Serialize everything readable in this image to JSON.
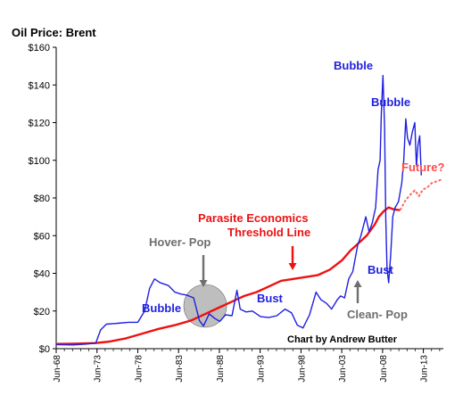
{
  "chart_data": {
    "type": "line",
    "title": "Oil Price: Brent",
    "xlabel": "",
    "ylabel": "",
    "ylim": [
      0,
      160
    ],
    "xlim": [
      1968.45,
      2015.9
    ],
    "y_ticks": [
      "$0",
      "$20",
      "$40",
      "$60",
      "$80",
      "$100",
      "$120",
      "$140",
      "$160"
    ],
    "y_tick_values": [
      0,
      20,
      40,
      60,
      80,
      100,
      120,
      140,
      160
    ],
    "x_ticks": [
      "Jun-68",
      "Jun-73",
      "Jun-78",
      "Jun-83",
      "Jun-88",
      "Jun-93",
      "Jun-98",
      "Jun-03",
      "Jun-08",
      "Jun-13"
    ],
    "x_tick_values": [
      1968.45,
      1973.45,
      1978.45,
      1983.45,
      1988.45,
      1993.45,
      1998.45,
      2003.45,
      2008.45,
      2013.45
    ],
    "grid": false,
    "colors": {
      "brent": "#1f1fe0",
      "threshold": "#ee1111",
      "future": "#ff6666",
      "pop_circle": "#b8b8b8",
      "arrow_gray": "#6e6e6e"
    },
    "series": [
      {
        "key": "brent",
        "x": [
          1968.45,
          1970.5,
          1972.0,
          1973.3,
          1973.9,
          1974.6,
          1976.0,
          1977.3,
          1978.45,
          1979.3,
          1979.9,
          1980.5,
          1981.2,
          1982.2,
          1983.0,
          1983.7,
          1984.4,
          1985.3,
          1986.0,
          1986.5,
          1987.2,
          1987.9,
          1988.5,
          1989.2,
          1990.0,
          1990.6,
          1991.0,
          1991.7,
          1992.5,
          1993.5,
          1994.5,
          1995.5,
          1996.5,
          1997.3,
          1998.0,
          1998.7,
          1999.5,
          2000.3,
          2000.9,
          2001.6,
          2002.2,
          2002.9,
          2003.3,
          2003.8,
          2004.3,
          2004.8,
          2005.4,
          2005.8,
          2006.4,
          2006.8,
          2007.2,
          2007.6,
          2007.9,
          2008.15,
          2008.3,
          2008.5,
          2008.7,
          2008.85,
          2009.0,
          2009.2,
          2009.45,
          2009.7,
          2010.0,
          2010.4,
          2010.8,
          2011.05,
          2011.3,
          2011.5,
          2011.8,
          2012.1,
          2012.4,
          2012.6,
          2012.8,
          2013.0,
          2013.2
        ],
        "values": [
          2.2,
          2.0,
          2.4,
          3.0,
          10.0,
          13.0,
          13.5,
          14.0,
          14.0,
          20.0,
          32.0,
          37.0,
          35.0,
          33.5,
          30.0,
          29.0,
          28.5,
          27.0,
          15.0,
          12.0,
          18.5,
          16.0,
          14.5,
          18.0,
          17.5,
          31.0,
          21.0,
          19.5,
          20.0,
          17.0,
          16.5,
          17.5,
          21.0,
          19.0,
          12.5,
          11.0,
          18.0,
          30.0,
          26.0,
          24.0,
          21.0,
          26.0,
          28.0,
          27.0,
          37.0,
          41.0,
          55.0,
          60.0,
          70.0,
          62.0,
          67.0,
          75.0,
          95.0,
          100.0,
          125.0,
          145.0,
          118.0,
          68.0,
          42.0,
          35.0,
          50.0,
          70.0,
          75.0,
          78.0,
          88.0,
          100.0,
          122.0,
          112.0,
          108.0,
          115.0,
          120.0,
          97.0,
          108.0,
          113.0,
          92.0
        ]
      },
      {
        "key": "threshold",
        "x": [
          1968.45,
          1971.0,
          1973.3,
          1975.0,
          1977.0,
          1979.0,
          1981.0,
          1983.0,
          1985.0,
          1987.0,
          1988.5,
          1990.0,
          1991.5,
          1993.0,
          1994.5,
          1996.0,
          1997.5,
          1999.0,
          2000.5,
          2002.0,
          2003.5,
          2004.5,
          2005.5,
          2006.5,
          2007.5,
          2008.0,
          2008.6,
          2009.2,
          2009.8,
          2010.6
        ],
        "values": [
          2.5,
          2.7,
          3.0,
          3.8,
          5.5,
          8.0,
          10.5,
          12.5,
          15.0,
          19.0,
          22.0,
          25.0,
          28.0,
          30.0,
          33.0,
          36.0,
          37.0,
          38.0,
          39.0,
          42.0,
          47.0,
          52.0,
          56.0,
          60.0,
          66.0,
          70.0,
          73.0,
          75.0,
          74.0,
          73.5
        ]
      },
      {
        "key": "future",
        "x": [
          2010.6,
          2011.3,
          2011.9,
          2012.4,
          2012.9,
          2013.4,
          2013.9,
          2014.5,
          2015.2,
          2015.8
        ],
        "values": [
          73.5,
          79.0,
          82.0,
          84.0,
          81.0,
          84.5,
          85.5,
          88.0,
          89.0,
          90.0
        ]
      }
    ],
    "annotations": [
      {
        "key": "bubble_early",
        "text": "Bubble",
        "color": "#1f1fe0"
      },
      {
        "key": "bust_mid",
        "text": "Bust",
        "color": "#1f1fe0"
      },
      {
        "key": "bubble_2008",
        "text": "Bubble",
        "color": "#1f1fe0"
      },
      {
        "key": "bubble_2011",
        "text": "Bubble",
        "color": "#1f1fe0"
      },
      {
        "key": "bust_2009",
        "text": "Bust",
        "color": "#1f1fe0"
      },
      {
        "key": "future",
        "text": "Future?",
        "color": "#ff4a4a"
      },
      {
        "key": "parasite",
        "text": "Parasite Economics",
        "color": "#ee1111"
      },
      {
        "key": "threshold",
        "text": "Threshold Line",
        "color": "#ee1111"
      },
      {
        "key": "hover_pop",
        "text": "Hover- Pop",
        "color": "#6e6e6e"
      },
      {
        "key": "clean_pop",
        "text": "Clean- Pop",
        "color": "#6e6e6e"
      }
    ],
    "credit": "Chart by Andrew Butter"
  }
}
